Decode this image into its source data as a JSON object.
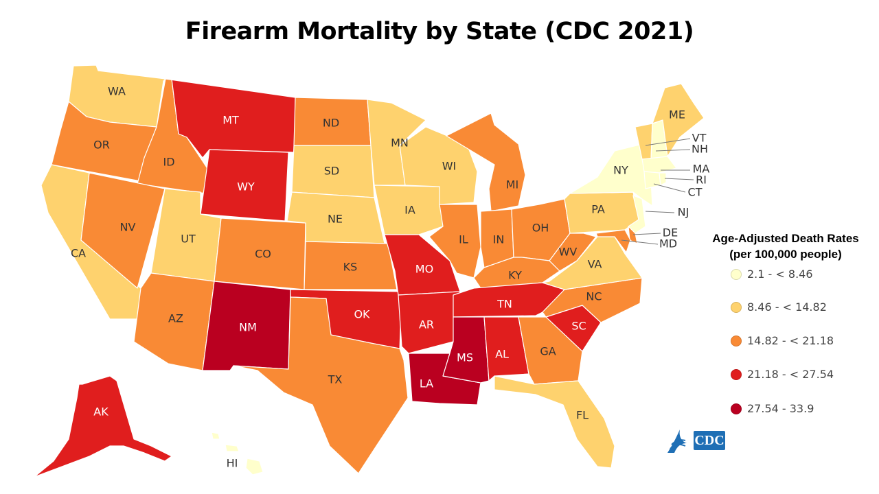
{
  "title": "Firearm Mortality by State (CDC 2021)",
  "legend": {
    "title_line1": "Age-Adjusted Death Rates",
    "title_line2": "(per 100,000 people)",
    "classes": [
      {
        "label": "2.1 - < 8.46",
        "color": "#ffffcc"
      },
      {
        "label": "8.46 - < 14.82",
        "color": "#fed26e"
      },
      {
        "label": "14.82 - < 21.18",
        "color": "#f98a35"
      },
      {
        "label": "21.18 - < 27.54",
        "color": "#e01e1e"
      },
      {
        "label": "27.54 - 33.9",
        "color": "#ba0020"
      }
    ]
  },
  "logo": {
    "text": "CDC",
    "color": "#1f6fb5"
  },
  "states": {
    "WA": 1,
    "OR": 2,
    "CA": 1,
    "ID": 2,
    "NV": 2,
    "MT": 3,
    "WY": 3,
    "UT": 1,
    "AZ": 2,
    "CO": 2,
    "NM": 4,
    "ND": 2,
    "SD": 1,
    "NE": 1,
    "KS": 2,
    "OK": 3,
    "TX": 2,
    "MN": 1,
    "IA": 1,
    "MO": 3,
    "AR": 3,
    "LA": 4,
    "WI": 1,
    "IL": 2,
    "MI": 2,
    "IN": 2,
    "OH": 2,
    "KY": 2,
    "TN": 3,
    "MS": 4,
    "AL": 3,
    "GA": 2,
    "FL": 1,
    "SC": 3,
    "NC": 2,
    "VA": 1,
    "WV": 2,
    "PA": 1,
    "NY": 0,
    "ME": 1,
    "VT": 1,
    "NH": 0,
    "MA": 0,
    "RI": 0,
    "CT": 0,
    "NJ": 0,
    "DE": 2,
    "MD": 2,
    "AK": 3,
    "HI": 0
  }
}
